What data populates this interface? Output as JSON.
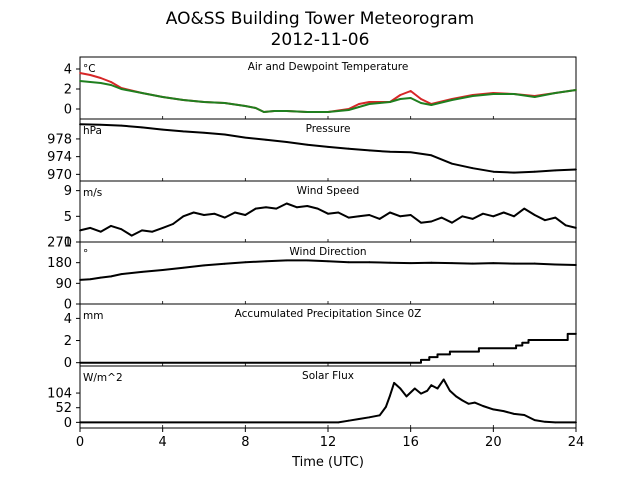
{
  "title": "AO&SS Building Tower Meteorogram",
  "subtitle": "2012-11-06",
  "xlabel": "Time (UTC)",
  "x_ticks": [
    0,
    4,
    8,
    12,
    16,
    20,
    24
  ],
  "chart_data": [
    {
      "type": "line",
      "title": "Air and Dewpoint Temperature",
      "unit": "°C",
      "ylim": [
        -1,
        5.2
      ],
      "yticks": [
        0,
        2,
        4
      ],
      "series": [
        {
          "color": "#d62728",
          "x": [
            0,
            0.5,
            1.0,
            1.5,
            2.0,
            3,
            4,
            5,
            6,
            7,
            8,
            8.5,
            8.9,
            9.4,
            10,
            11,
            12,
            13,
            13.5,
            14,
            14.5,
            15,
            15.5,
            16,
            16.5,
            17,
            18,
            19,
            20,
            21,
            22,
            23,
            24
          ],
          "y": [
            3.6,
            3.4,
            3.1,
            2.7,
            2.1,
            1.6,
            1.2,
            0.9,
            0.7,
            0.6,
            0.3,
            0.1,
            -0.3,
            -0.2,
            -0.2,
            -0.3,
            -0.3,
            0,
            0.5,
            0.7,
            0.7,
            0.7,
            1.4,
            1.8,
            1.0,
            0.5,
            1.0,
            1.4,
            1.6,
            1.5,
            1.3,
            1.6,
            1.9
          ]
        },
        {
          "color": "#1f7f1f",
          "x": [
            0,
            0.5,
            1.0,
            1.5,
            2.0,
            3,
            4,
            5,
            6,
            7,
            8,
            8.5,
            8.9,
            9.4,
            10,
            11,
            12,
            13,
            13.5,
            14,
            14.5,
            15,
            15.5,
            16,
            16.5,
            17,
            18,
            19,
            20,
            21,
            22,
            23,
            24
          ],
          "y": [
            2.8,
            2.7,
            2.6,
            2.4,
            2.0,
            1.6,
            1.2,
            0.9,
            0.7,
            0.6,
            0.3,
            0.1,
            -0.3,
            -0.2,
            -0.2,
            -0.3,
            -0.3,
            -0.1,
            0.2,
            0.5,
            0.6,
            0.7,
            1.0,
            1.1,
            0.6,
            0.4,
            0.9,
            1.3,
            1.5,
            1.5,
            1.2,
            1.6,
            1.9
          ]
        }
      ]
    },
    {
      "type": "line",
      "title": "Pressure",
      "unit": "hPa",
      "ylim": [
        968.5,
        982.5
      ],
      "yticks": [
        970,
        974,
        978
      ],
      "series": [
        {
          "color": "#000000",
          "x": [
            0,
            1,
            2,
            3,
            4,
            5,
            6,
            7,
            8,
            9,
            10,
            11,
            12,
            13,
            14,
            15,
            16,
            17,
            18,
            19,
            20,
            21,
            22,
            23,
            24
          ],
          "y": [
            981.3,
            981.2,
            981.0,
            980.6,
            980.1,
            979.7,
            979.4,
            979.0,
            978.3,
            977.8,
            977.3,
            976.7,
            976.2,
            975.8,
            975.4,
            975.1,
            975.0,
            974.3,
            972.4,
            971.4,
            970.6,
            970.4,
            970.6,
            970.9,
            971.1
          ]
        }
      ]
    },
    {
      "type": "line",
      "title": "Wind Speed",
      "unit": "m/s",
      "ylim": [
        1,
        10.5
      ],
      "yticks": [
        1,
        5,
        9
      ],
      "series": [
        {
          "color": "#000000",
          "x": [
            0,
            0.5,
            1,
            1.5,
            2,
            2.5,
            3,
            3.5,
            4,
            4.5,
            5,
            5.5,
            6,
            6.5,
            7,
            7.5,
            8,
            8.5,
            9,
            9.5,
            10,
            10.5,
            11,
            11.5,
            12,
            12.5,
            13,
            13.5,
            14,
            14.5,
            15,
            15.5,
            16,
            16.5,
            17,
            17.5,
            18,
            18.5,
            19,
            19.5,
            20,
            20.5,
            21,
            21.5,
            22,
            22.5,
            23,
            23.5,
            24
          ],
          "y": [
            2.8,
            3.2,
            2.6,
            3.5,
            3.0,
            2.0,
            2.8,
            2.6,
            3.2,
            3.8,
            5.0,
            5.6,
            5.2,
            5.4,
            4.8,
            5.6,
            5.2,
            6.2,
            6.4,
            6.2,
            7.0,
            6.4,
            6.6,
            6.2,
            5.4,
            5.6,
            4.8,
            5.0,
            5.2,
            4.6,
            5.6,
            5.0,
            5.2,
            4.0,
            4.2,
            4.8,
            4.0,
            5.0,
            4.6,
            5.4,
            5.0,
            5.6,
            5.0,
            6.2,
            5.2,
            4.4,
            4.8,
            3.6,
            3.2
          ]
        }
      ]
    },
    {
      "type": "line",
      "title": "Wind Direction",
      "unit": "°",
      "ylim": [
        0,
        270
      ],
      "yticks": [
        0,
        90,
        180,
        270
      ],
      "series": [
        {
          "color": "#000000",
          "x": [
            0,
            0.5,
            1,
            1.5,
            2,
            3,
            4,
            5,
            6,
            7,
            8,
            9,
            10,
            11,
            12,
            13,
            14,
            15,
            16,
            17,
            18,
            19,
            20,
            21,
            22,
            23,
            24
          ],
          "y": [
            105,
            108,
            115,
            120,
            130,
            140,
            148,
            158,
            168,
            175,
            182,
            186,
            190,
            190,
            186,
            182,
            182,
            180,
            178,
            180,
            178,
            176,
            178,
            176,
            176,
            172,
            170
          ]
        }
      ]
    },
    {
      "type": "line",
      "title": "Accumulated Precipitation Since 0Z",
      "unit": "mm",
      "ylim": [
        -0.3,
        5.3
      ],
      "yticks": [
        0,
        2,
        4
      ],
      "series": [
        {
          "color": "#000000",
          "x": [
            0,
            16.5,
            16.5,
            16.9,
            16.9,
            17.3,
            17.3,
            17.9,
            17.9,
            19.3,
            19.3,
            21.1,
            21.1,
            21.4,
            21.4,
            21.7,
            21.7,
            23.6,
            23.6,
            24
          ],
          "y": [
            0,
            0,
            0.25,
            0.25,
            0.5,
            0.5,
            0.75,
            0.75,
            1.0,
            1.0,
            1.3,
            1.3,
            1.55,
            1.55,
            1.8,
            1.8,
            2.05,
            2.05,
            2.6,
            2.6
          ]
        }
      ]
    },
    {
      "type": "line",
      "title": "Solar Flux",
      "unit": "W/m^2",
      "ylim": [
        -20,
        200
      ],
      "yticks": [
        0,
        52,
        104
      ],
      "series": [
        {
          "color": "#000000",
          "x": [
            0,
            12.5,
            13.0,
            13.5,
            14.0,
            14.5,
            14.8,
            15.0,
            15.2,
            15.5,
            15.8,
            16.2,
            16.5,
            16.8,
            17.0,
            17.3,
            17.6,
            17.9,
            18.2,
            18.5,
            18.8,
            19.1,
            19.5,
            20.0,
            20.5,
            21.0,
            21.5,
            22.0,
            22.5,
            23,
            24
          ],
          "y": [
            0,
            0,
            6,
            12,
            18,
            25,
            55,
            95,
            140,
            120,
            92,
            120,
            102,
            112,
            132,
            120,
            152,
            112,
            92,
            78,
            66,
            70,
            58,
            46,
            40,
            30,
            26,
            8,
            2,
            0,
            0
          ]
        }
      ]
    }
  ]
}
